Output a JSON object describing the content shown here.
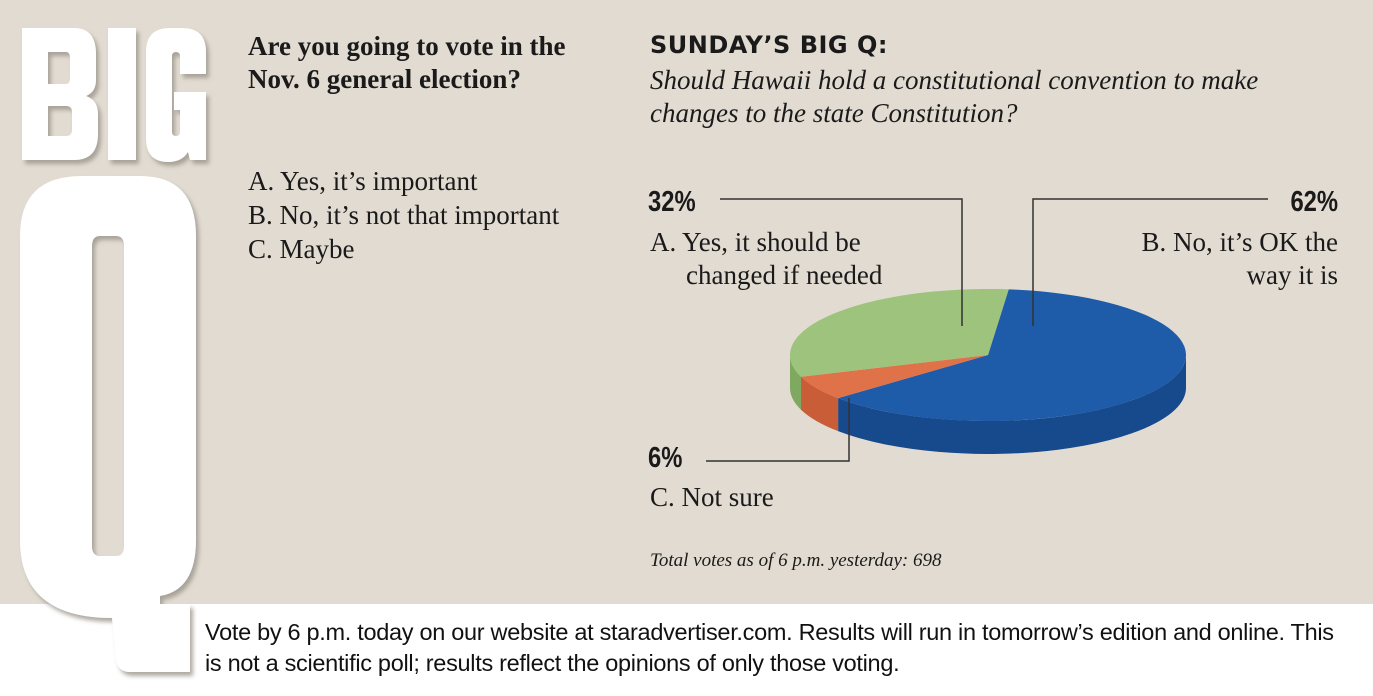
{
  "logo": {
    "big": "BIG",
    "q": "Q"
  },
  "current_question": {
    "title": "Are you going to vote in the Nov. 6 general election?",
    "options": [
      "A. Yes, it’s important",
      "B. No, it’s not that important",
      "C. Maybe"
    ]
  },
  "sunday": {
    "heading": "SUNDAY’S BIG Q:",
    "question": "Should Hawaii hold a constitutional convention to make changes to the state Constitution?"
  },
  "chart_data": {
    "type": "pie",
    "title": "",
    "slices": [
      {
        "label": "A. Yes, it should be changed if needed",
        "percent_label": "32%",
        "value": 32,
        "color": "#9dc37c",
        "side_color": "#7fa860"
      },
      {
        "label": "B. No, it’s OK the way it is",
        "percent_label": "62%",
        "value": 62,
        "color": "#1e5ba8",
        "side_color": "#164a8c"
      },
      {
        "label": "C. Not sure",
        "percent_label": "6%",
        "value": 6,
        "color": "#e0724a",
        "side_color": "#c85d38"
      }
    ],
    "legend": "none"
  },
  "total_votes": "Total votes as of 6 p.m. yesterday: 698",
  "footer": "Vote by 6 p.m. today on our website at staradvertiser.com. Results will run in tomorrow’s edition and online. This is not a scientific poll; results reflect the opinions of only those voting."
}
